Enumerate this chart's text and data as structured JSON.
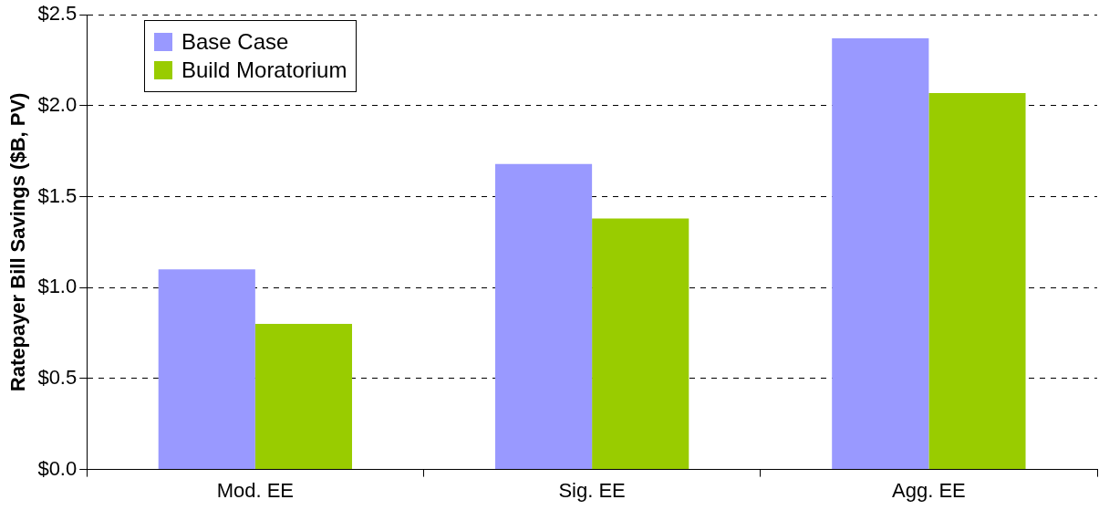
{
  "chart_data": {
    "type": "bar",
    "ylabel": "Ratepayer Bill Savings ($B, PV)",
    "categories": [
      "Mod. EE",
      "Sig. EE",
      "Agg. EE"
    ],
    "series": [
      {
        "name": "Base Case",
        "color": "#9999ff",
        "values": [
          1.1,
          1.68,
          2.37
        ]
      },
      {
        "name": "Build Moratorium",
        "color": "#99cc00",
        "values": [
          0.8,
          1.38,
          2.07
        ]
      }
    ],
    "ylim": [
      0,
      2.5
    ],
    "yticks": [
      {
        "value": 0,
        "label": "$0.0"
      },
      {
        "value": 0.5,
        "label": "$0.5"
      },
      {
        "value": 1,
        "label": "$1.0"
      },
      {
        "value": 1.5,
        "label": "$1.5"
      },
      {
        "value": 2,
        "label": "$2.0"
      },
      {
        "value": 2.5,
        "label": "$2.5"
      }
    ],
    "grid": "y",
    "legend": "top left"
  }
}
